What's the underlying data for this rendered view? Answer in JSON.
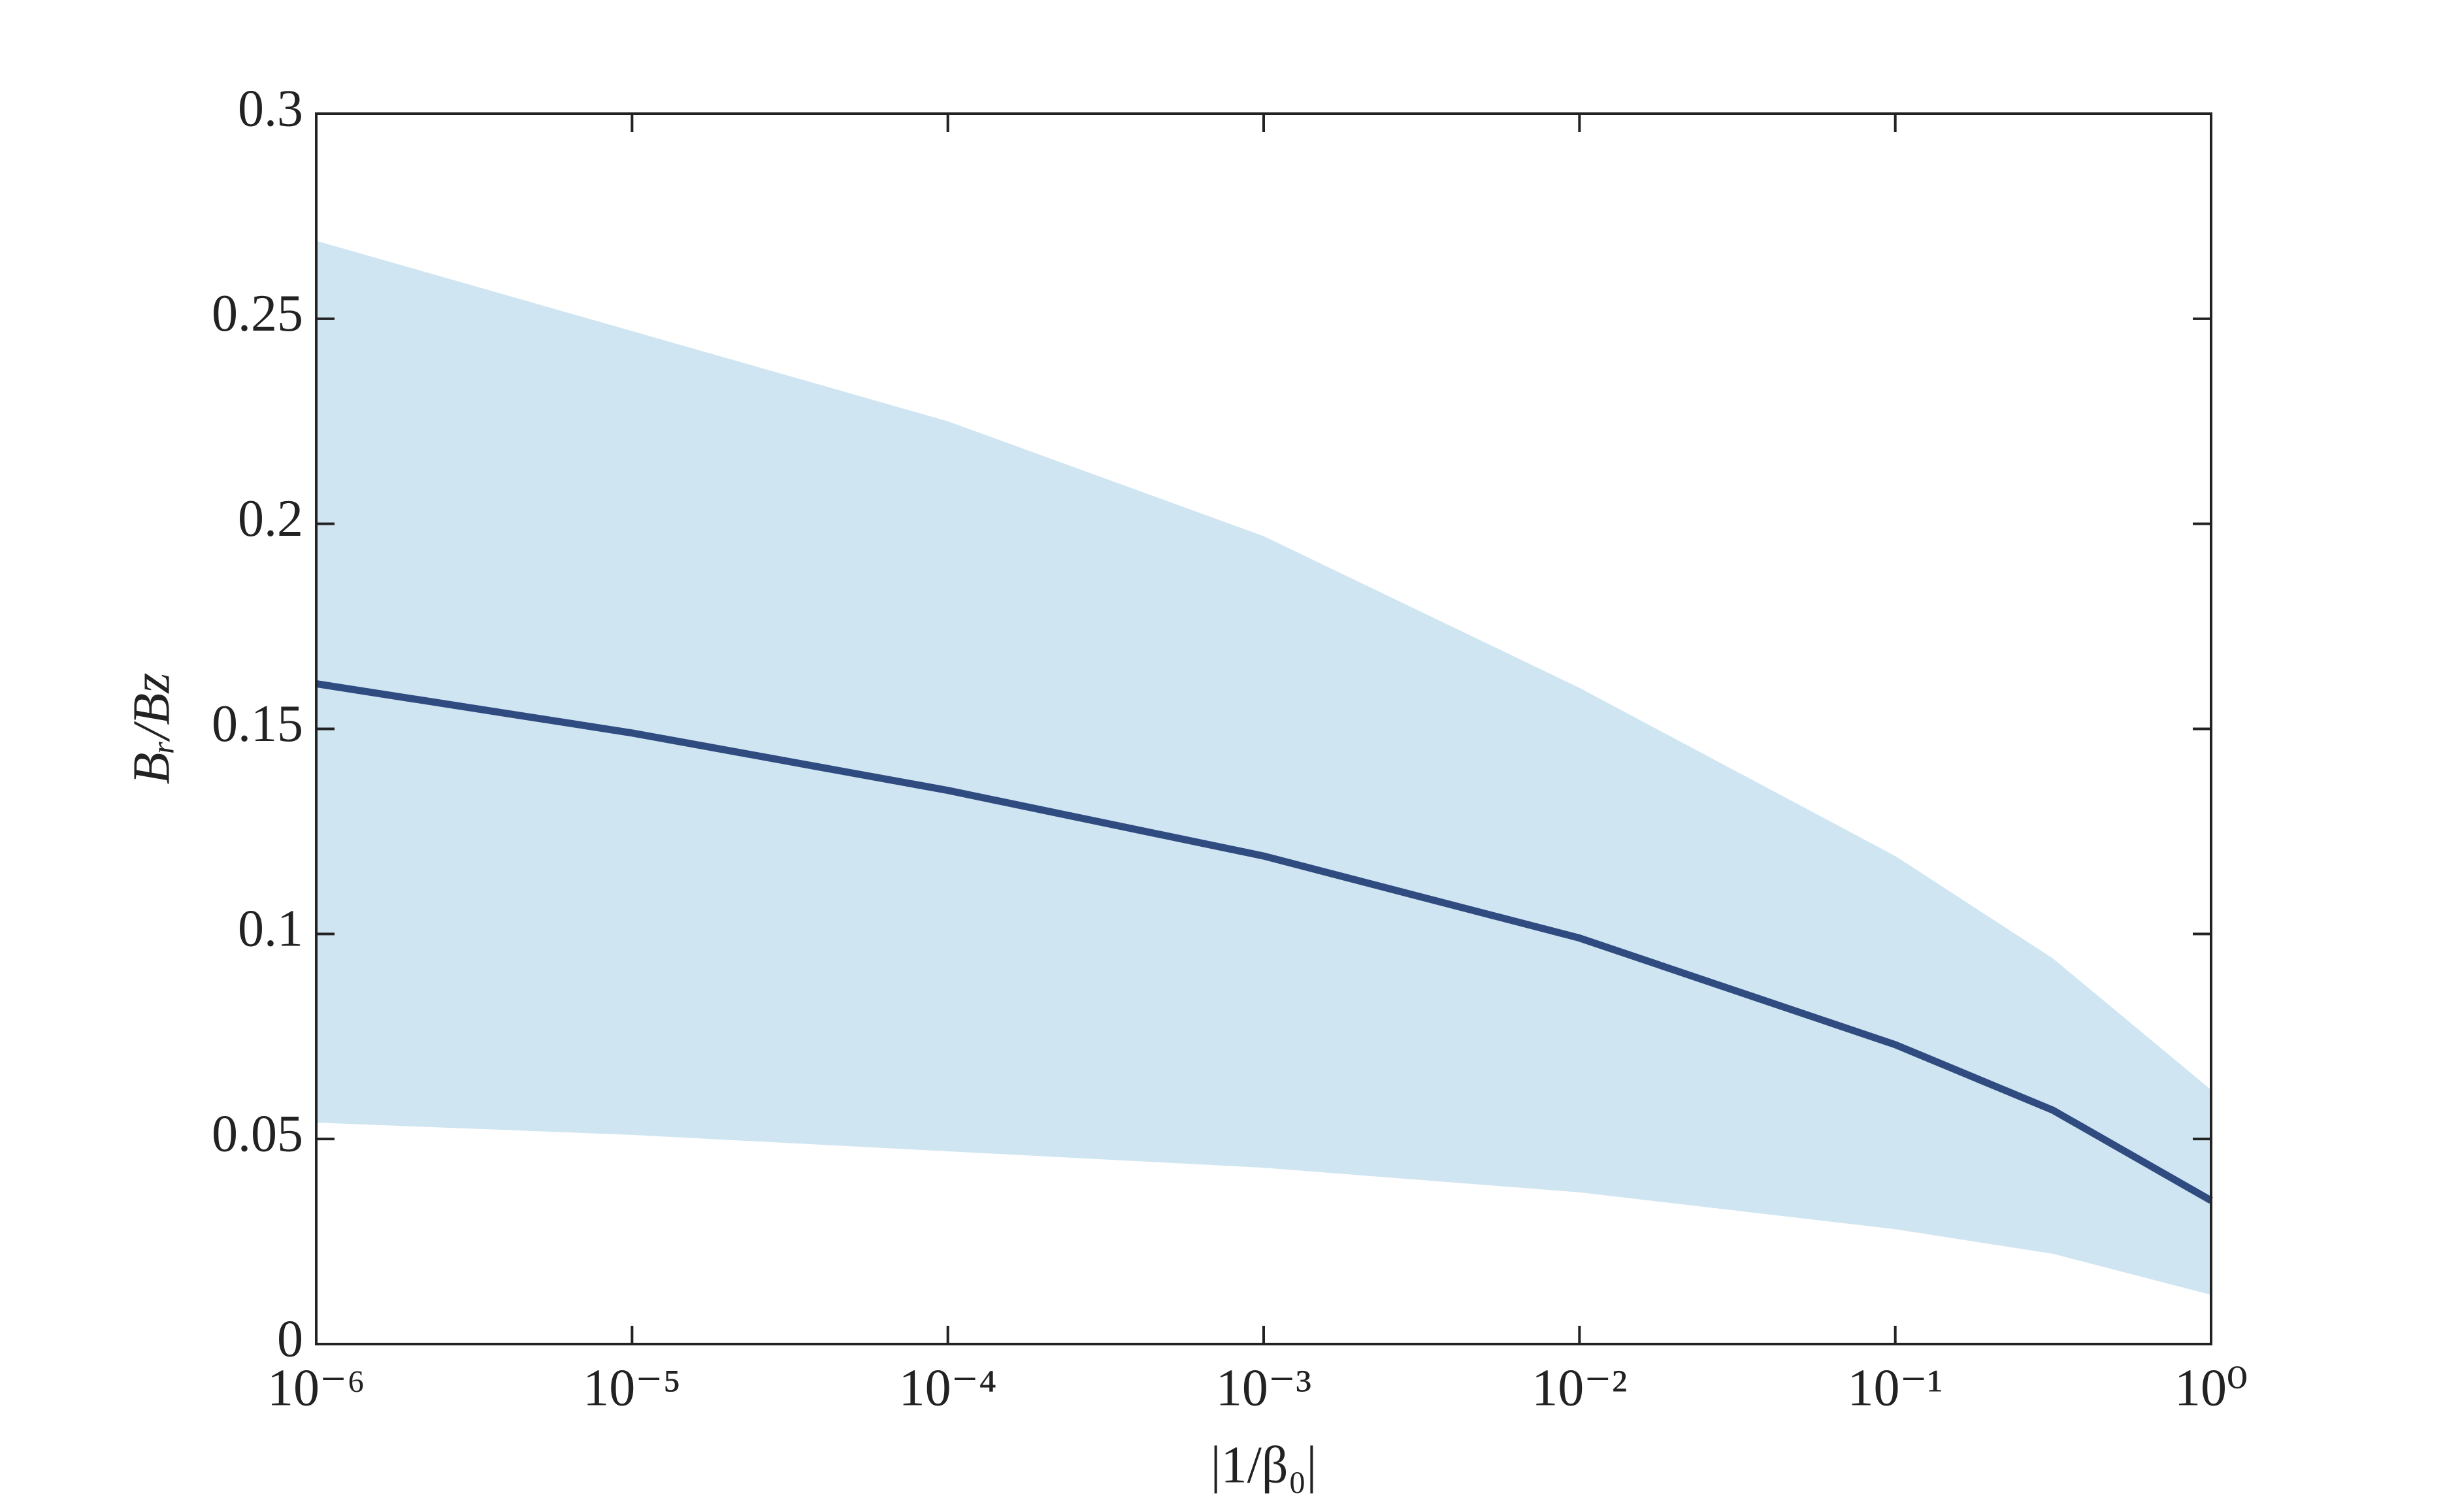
{
  "chart_data": {
    "type": "line",
    "x_label": "|1/β₀|",
    "y_label": "Bᵣ/Bz",
    "x": [
      1e-06,
      1e-05,
      0.0001,
      0.001,
      0.01,
      0.1,
      0.316,
      1
    ],
    "series": [
      {
        "color": "#2f4b80",
        "values": [
          0.161,
          0.149,
          0.135,
          0.119,
          0.099,
          0.073,
          0.057,
          0.035
        ]
      }
    ],
    "band": {
      "color": "#d0e5f2",
      "lower": [
        0.054,
        0.051,
        0.047,
        0.043,
        0.037,
        0.028,
        0.022,
        0.012
      ],
      "upper": [
        0.269,
        0.247,
        0.225,
        0.197,
        0.16,
        0.119,
        0.094,
        0.062
      ]
    },
    "xscale": "log",
    "xlim": [
      1e-06,
      1
    ],
    "ylim": [
      0,
      0.3
    ],
    "xticks": [
      {
        "value": 1e-06,
        "label": "10⁻⁶"
      },
      {
        "value": 1e-05,
        "label": "10⁻⁵"
      },
      {
        "value": 0.0001,
        "label": "10⁻⁴"
      },
      {
        "value": 0.001,
        "label": "10⁻³"
      },
      {
        "value": 0.01,
        "label": "10⁻²"
      },
      {
        "value": 0.1,
        "label": "10⁻¹"
      },
      {
        "value": 1,
        "label": "10⁰"
      }
    ],
    "yticks": [
      0,
      0.05,
      0.1,
      0.15,
      0.2,
      0.25,
      0.3
    ],
    "grid": false
  }
}
